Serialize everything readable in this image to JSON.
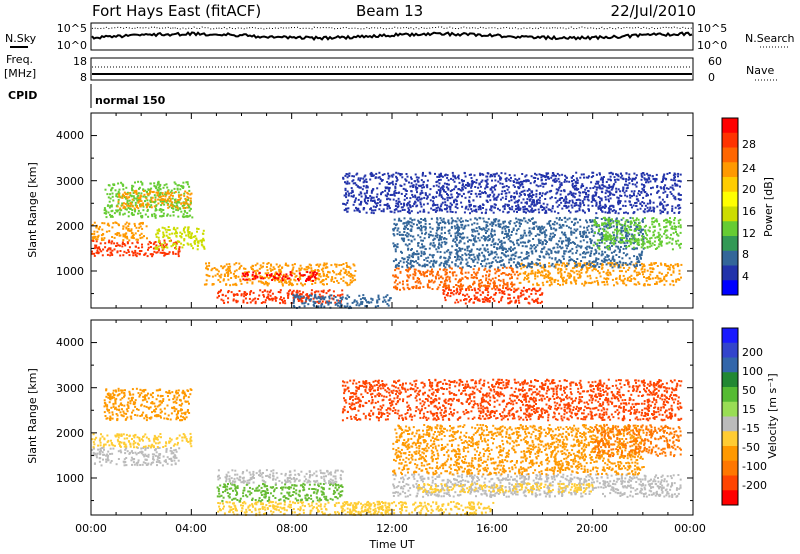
{
  "header": {
    "station": "Fort Hays East (fitACF)",
    "beam": "Beam 13",
    "date": "22/Jul/2010"
  },
  "summary": {
    "nsky_label": "N.Sky",
    "nsearch_label": "N.Search",
    "noise_ticks": [
      "10^5",
      "10^0"
    ],
    "freq_label_1": "Freq.",
    "freq_label_2": "[MHz]",
    "freq_ticks": [
      "18",
      "8"
    ],
    "nave_label": "Nave",
    "nave_ticks": [
      "60",
      "0"
    ],
    "cpid_label": "CPID",
    "cpid_value": "normal 150"
  },
  "power_colorbar": {
    "label": "Power [dB]",
    "ticks": [
      "28",
      "24",
      "20",
      "16",
      "12",
      "8",
      "4"
    ],
    "colors": [
      "#ff0000",
      "#ff3300",
      "#ff6600",
      "#ff9900",
      "#ffcc00",
      "#ffff00",
      "#ccdd00",
      "#66cc33",
      "#339955",
      "#336699",
      "#2233aa",
      "#0000ff"
    ]
  },
  "velocity_colorbar": {
    "label": "Velocity [m s⁻¹]",
    "ticks": [
      "200",
      "100",
      "50",
      "15",
      "-15",
      "-50",
      "-100",
      "-200"
    ],
    "colors": [
      "#1a1aff",
      "#3344cc",
      "#3366aa",
      "#228833",
      "#55bb33",
      "#99dd55",
      "#bbbbbb",
      "#ffcc33",
      "#ff9900",
      "#ff7700",
      "#ff4400",
      "#ff0000"
    ]
  },
  "chart_data": [
    {
      "type": "heatmap",
      "name": "power",
      "ylabel": "Slant Range [km]",
      "xlabel": "",
      "x_tick_labels": [
        "00:00",
        "04:00",
        "08:00",
        "12:00",
        "16:00",
        "20:00",
        "00:00"
      ],
      "y_tick_labels": [
        "1000",
        "2000",
        "3000",
        "4000"
      ],
      "xlim_hours": [
        0,
        24
      ],
      "ylim_km": [
        180,
        4500
      ],
      "bands": [
        {
          "t0": 0.0,
          "t1": 3.5,
          "r0": 1350,
          "r1": 1700,
          "color": "#ff3300"
        },
        {
          "t0": 0.0,
          "t1": 2.2,
          "r0": 1700,
          "r1": 2100,
          "color": "#ff9900"
        },
        {
          "t0": 2.5,
          "t1": 4.5,
          "r0": 1500,
          "r1": 2000,
          "color": "#ccdd00"
        },
        {
          "t0": 0.5,
          "t1": 4.0,
          "r0": 2200,
          "r1": 3000,
          "color": "#66cc33"
        },
        {
          "t0": 1.0,
          "t1": 4.0,
          "r0": 2400,
          "r1": 2800,
          "color": "#ff9900"
        },
        {
          "t0": 5.0,
          "t1": 10.0,
          "r0": 300,
          "r1": 600,
          "color": "#ff3300"
        },
        {
          "t0": 4.5,
          "t1": 10.5,
          "r0": 700,
          "r1": 1200,
          "color": "#ff9900"
        },
        {
          "t0": 6.0,
          "t1": 9.0,
          "r0": 800,
          "r1": 1000,
          "color": "#ff0000"
        },
        {
          "t0": 8.0,
          "t1": 12.0,
          "r0": 200,
          "r1": 500,
          "color": "#336699"
        },
        {
          "t0": 12.0,
          "t1": 17.0,
          "r0": 600,
          "r1": 1100,
          "color": "#ff6600"
        },
        {
          "t0": 14.0,
          "t1": 18.0,
          "r0": 300,
          "r1": 650,
          "color": "#ff3300"
        },
        {
          "t0": 17.0,
          "t1": 23.5,
          "r0": 700,
          "r1": 1200,
          "color": "#ff9900"
        },
        {
          "t0": 12.0,
          "t1": 22.0,
          "r0": 1100,
          "r1": 2200,
          "color": "#336699"
        },
        {
          "t0": 20.0,
          "t1": 23.5,
          "r0": 1500,
          "r1": 2200,
          "color": "#66cc33"
        },
        {
          "t0": 10.0,
          "t1": 23.5,
          "r0": 2300,
          "r1": 3200,
          "color": "#2233aa"
        }
      ]
    },
    {
      "type": "heatmap",
      "name": "velocity",
      "ylabel": "Slant Range [km]",
      "xlabel": "Time UT",
      "x_tick_labels": [
        "00:00",
        "04:00",
        "08:00",
        "12:00",
        "16:00",
        "20:00",
        "00:00"
      ],
      "y_tick_labels": [
        "1000",
        "2000",
        "3000",
        "4000"
      ],
      "xlim_hours": [
        0,
        24
      ],
      "ylim_km": [
        180,
        4500
      ],
      "bands": [
        {
          "t0": 0.0,
          "t1": 3.5,
          "r0": 1300,
          "r1": 1700,
          "color": "#bbbbbb"
        },
        {
          "t0": 0.0,
          "t1": 4.0,
          "r0": 1700,
          "r1": 2000,
          "color": "#ffcc33"
        },
        {
          "t0": 0.5,
          "t1": 4.0,
          "r0": 2300,
          "r1": 3000,
          "color": "#ff9900"
        },
        {
          "t0": 5.0,
          "t1": 12.0,
          "r0": 200,
          "r1": 500,
          "color": "#ffcc33"
        },
        {
          "t0": 5.0,
          "t1": 10.0,
          "r0": 500,
          "r1": 900,
          "color": "#66bb33"
        },
        {
          "t0": 5.0,
          "t1": 10.0,
          "r0": 900,
          "r1": 1200,
          "color": "#bbbbbb"
        },
        {
          "t0": 10.0,
          "t1": 16.0,
          "r0": 200,
          "r1": 500,
          "color": "#ffcc33"
        },
        {
          "t0": 12.0,
          "t1": 23.5,
          "r0": 600,
          "r1": 1100,
          "color": "#bbbbbb"
        },
        {
          "t0": 13.0,
          "t1": 20.0,
          "r0": 700,
          "r1": 900,
          "color": "#ffcc33"
        },
        {
          "t0": 12.0,
          "t1": 22.0,
          "r0": 1100,
          "r1": 2200,
          "color": "#ff9900"
        },
        {
          "t0": 20.0,
          "t1": 23.5,
          "r0": 1500,
          "r1": 2200,
          "color": "#ff7700"
        },
        {
          "t0": 10.0,
          "t1": 23.5,
          "r0": 2300,
          "r1": 3200,
          "color": "#ff4400"
        }
      ]
    }
  ]
}
